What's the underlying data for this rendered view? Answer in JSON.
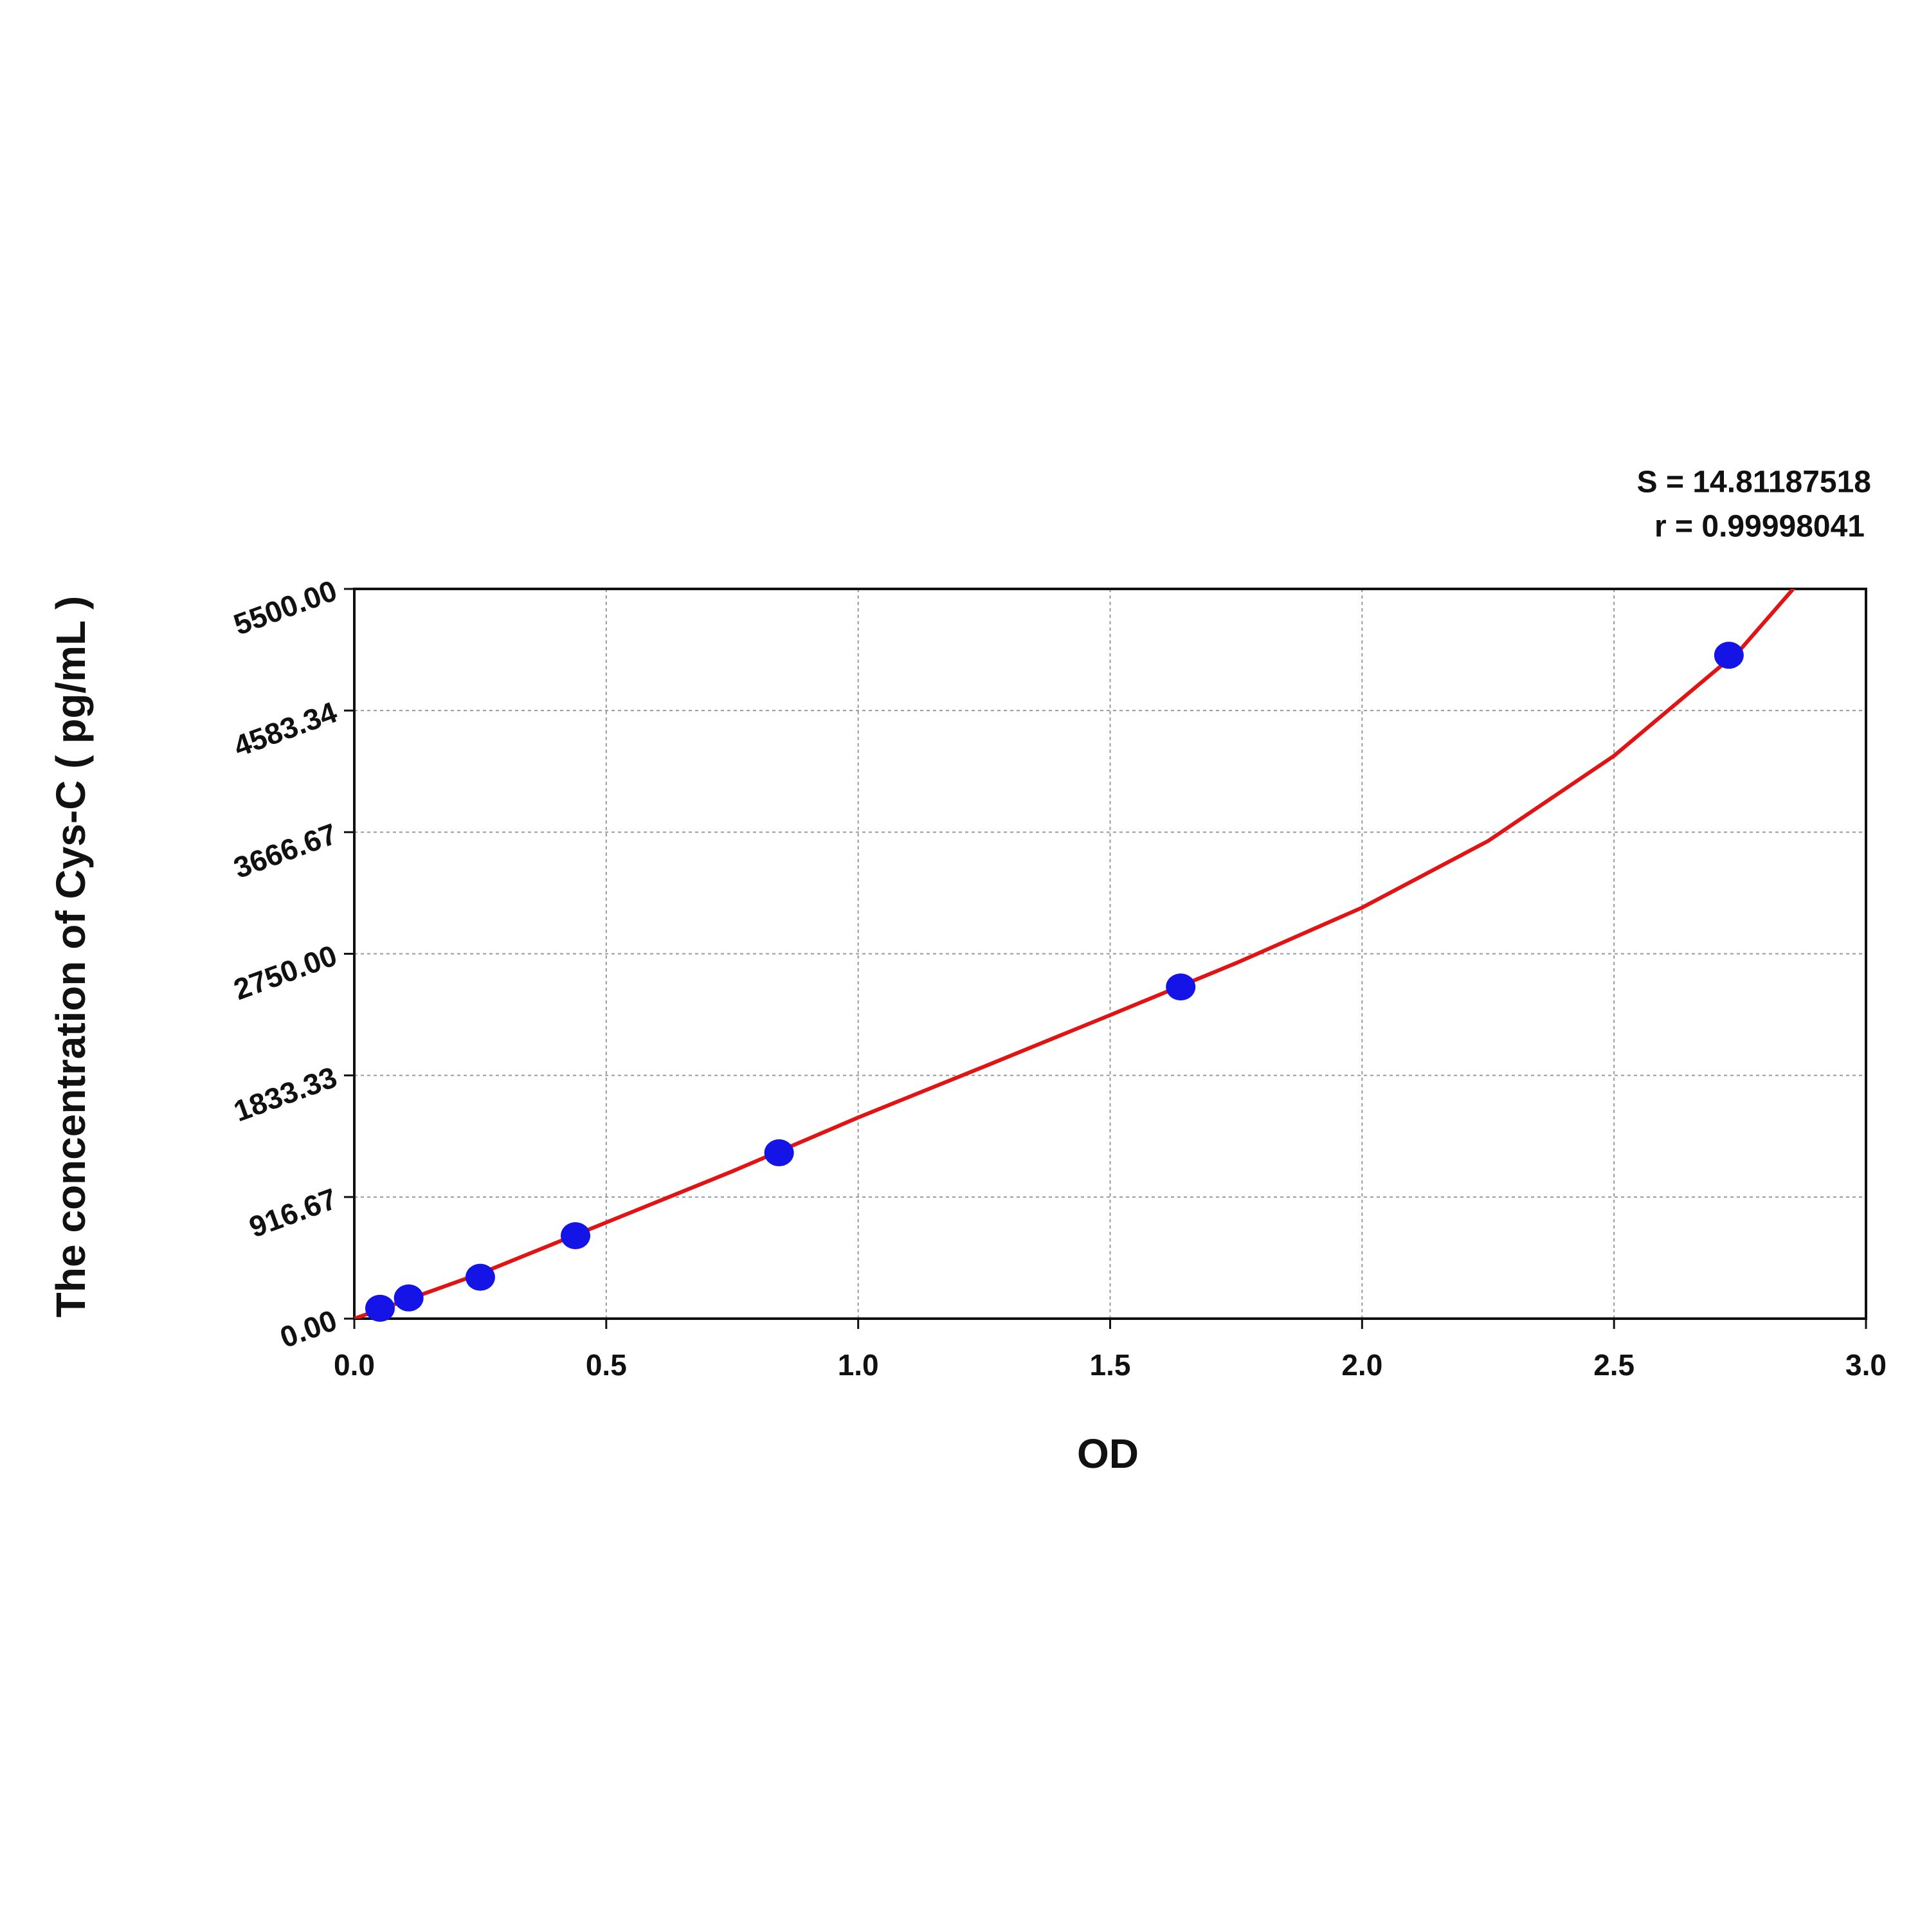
{
  "chart_data": {
    "type": "scatter",
    "annotations": [
      "S = 14.81187518",
      "r = 0.99998041"
    ],
    "xlabel": "OD",
    "ylabel": "The concentration of Cys-C ( pg/mL )",
    "x": [
      0.051,
      0.108,
      0.25,
      0.439,
      0.843,
      1.64,
      2.728
    ],
    "values": [
      78,
      156,
      312,
      625,
      1250,
      2500,
      5000
    ],
    "color": "#1414e6",
    "fit": {
      "color": "#e01414",
      "x": [
        0,
        0.25,
        0.5,
        0.75,
        1.0,
        1.25,
        1.5,
        1.75,
        2.0,
        2.25,
        2.5,
        2.75,
        2.87
      ],
      "values": [
        0,
        340,
        725,
        1110,
        1516,
        1900,
        2288,
        2680,
        3098,
        3600,
        4242,
        5040,
        5563
      ]
    },
    "xlim": [
      0,
      3
    ],
    "ylim": [
      0,
      5500
    ],
    "xticks": [
      {
        "value": 0,
        "label": "0.0"
      },
      0.5,
      {
        "value": 1,
        "label": "1.0"
      },
      1.5,
      {
        "value": 2,
        "label": "2.0"
      },
      2.5,
      {
        "value": 3,
        "label": "3.0"
      }
    ],
    "yticks": [
      {
        "value": 0,
        "label": "0.00"
      },
      916.67,
      1833.33,
      {
        "value": 2750,
        "label": "2750.00"
      },
      3666.67,
      4583.34,
      {
        "value": 5500,
        "label": "5500.00"
      }
    ],
    "grid": true
  }
}
